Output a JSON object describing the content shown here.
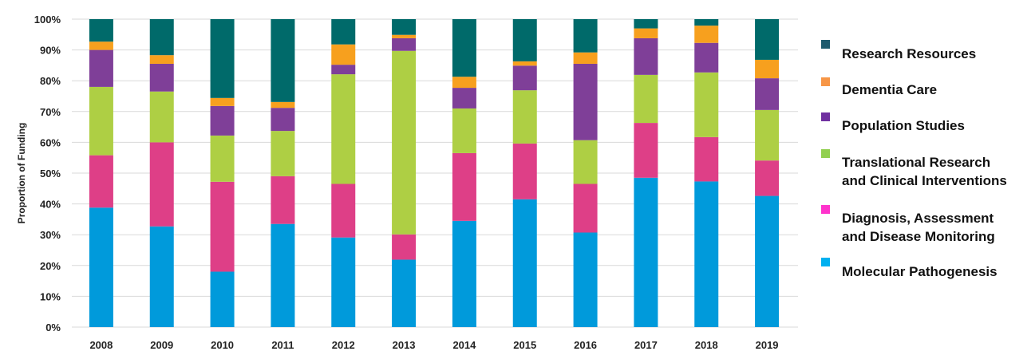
{
  "chart_data": {
    "type": "bar",
    "stacked": true,
    "title": "",
    "xlabel": "",
    "ylabel": "Proportion of Funding",
    "ylim": [
      0,
      100
    ],
    "yticks": [
      "0%",
      "10%",
      "20%",
      "30%",
      "40%",
      "50%",
      "60%",
      "70%",
      "80%",
      "90%",
      "100%"
    ],
    "grid": true,
    "legend_position": "right",
    "categories": [
      "2008",
      "2009",
      "2010",
      "2011",
      "2012",
      "2013",
      "2014",
      "2015",
      "2016",
      "2017",
      "2018",
      "2019"
    ],
    "series": [
      {
        "name": "Molecular Pathogenesis",
        "color": "#009ADB",
        "values": [
          38.8,
          32.7,
          18.0,
          33.5,
          29.1,
          21.9,
          34.5,
          41.5,
          30.7,
          48.5,
          47.3,
          42.6
        ]
      },
      {
        "name": "Diagnosis, Assessment and Disease Monitoring",
        "color": "#DE3F87",
        "values": [
          17.0,
          27.3,
          29.2,
          15.5,
          17.4,
          8.2,
          22.0,
          18.1,
          15.8,
          17.8,
          14.4,
          11.5
        ]
      },
      {
        "name": "Translational Research and Clinical Interventions",
        "color": "#AECF44",
        "values": [
          22.2,
          16.5,
          15.0,
          14.7,
          35.6,
          59.6,
          14.5,
          17.3,
          14.2,
          15.6,
          21.0,
          16.4
        ]
      },
      {
        "name": "Population Studies",
        "color": "#7F3F98",
        "values": [
          12.0,
          9.0,
          9.6,
          7.5,
          3.1,
          4.1,
          6.7,
          8.0,
          24.8,
          11.9,
          9.6,
          10.3
        ]
      },
      {
        "name": "Dementia Care",
        "color": "#F7A01E",
        "values": [
          2.7,
          2.8,
          2.6,
          1.9,
          6.6,
          1.1,
          3.6,
          1.4,
          3.7,
          3.2,
          5.6,
          6.0
        ]
      },
      {
        "name": "Research Resources",
        "color": "#006A6A",
        "values": [
          7.3,
          11.7,
          25.6,
          26.9,
          8.2,
          5.1,
          18.7,
          13.7,
          10.8,
          3.0,
          2.1,
          13.2
        ]
      }
    ]
  },
  "legend": [
    {
      "label": "Research Resources",
      "color": "#1E5B6E"
    },
    {
      "label": "Dementia Care",
      "color": "#F79646"
    },
    {
      "label": "Population Studies",
      "color": "#7030A0"
    },
    {
      "label": "Translational  Research\nand Clinical Interventions",
      "color": "#92D050"
    },
    {
      "label": "Diagnosis,  Assessment\nand Disease Monitoring",
      "color": "#FF33CC"
    },
    {
      "label": "Molecular  Pathogenesis",
      "color": "#00B0F0"
    }
  ]
}
